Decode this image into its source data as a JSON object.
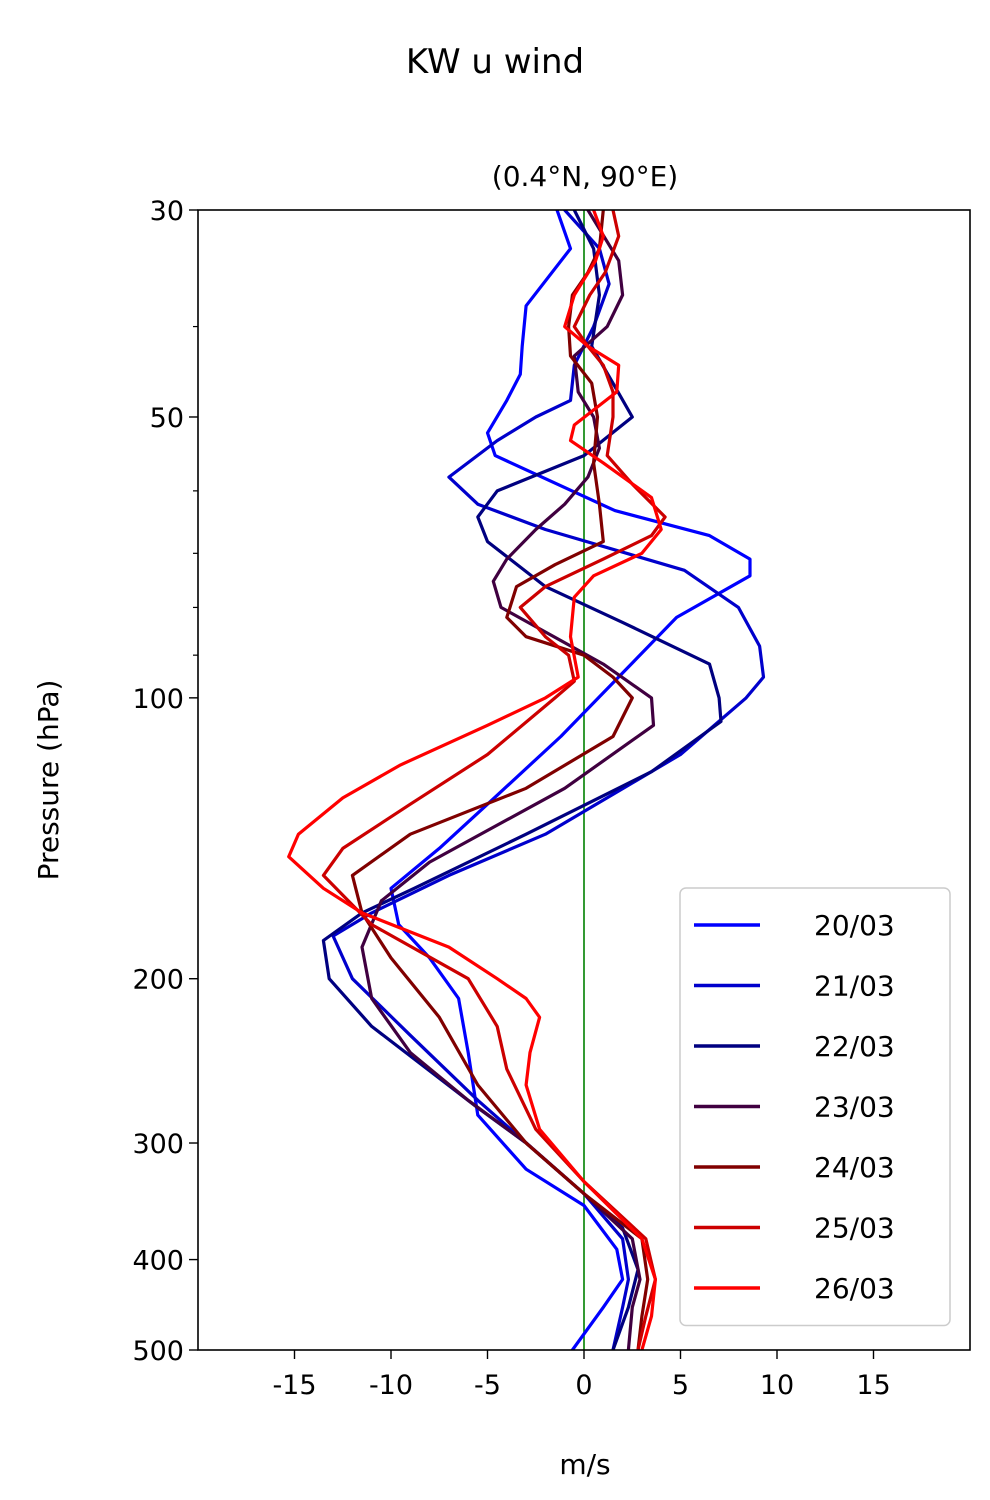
{
  "chart_data": {
    "type": "line",
    "title": "KW u wind",
    "subtitle": "(0.4°N, 90°E)",
    "xlabel": "m/s",
    "ylabel": "Pressure (hPa)",
    "xlim": [
      -20,
      20
    ],
    "ylim": [
      500,
      30
    ],
    "y_scale": "log",
    "grid": false,
    "legend_position": "lower-right",
    "x_ticks": [
      -15,
      -10,
      -5,
      0,
      5,
      10,
      15
    ],
    "x_tick_labels": [
      "-15",
      "-10",
      "-5",
      "0",
      "5",
      "10",
      "15"
    ],
    "y_ticks": [
      30,
      50,
      100,
      200,
      300,
      400,
      500
    ],
    "y_tick_labels": [
      "30",
      "50",
      "100",
      "200",
      "300",
      "400",
      "500"
    ],
    "y_minor_ticks": [
      40,
      60,
      70,
      80,
      90
    ],
    "reference_line": {
      "x": 0,
      "color": "#008000"
    },
    "series": [
      {
        "name": "20/03",
        "color": "#0000ff",
        "points": [
          [
            -1.4,
            30
          ],
          [
            -0.7,
            33
          ],
          [
            -3,
            38
          ],
          [
            -3.2,
            42
          ],
          [
            -3.3,
            45
          ],
          [
            -4,
            48
          ],
          [
            -5,
            52
          ],
          [
            -4.6,
            55
          ],
          [
            1.6,
            63
          ],
          [
            6.5,
            67
          ],
          [
            8.6,
            71
          ],
          [
            8.6,
            74
          ],
          [
            4.8,
            82
          ],
          [
            -1.2,
            110
          ],
          [
            -5,
            130
          ],
          [
            -7.5,
            145
          ],
          [
            -10,
            160
          ],
          [
            -9.6,
            175
          ],
          [
            -8,
            190
          ],
          [
            -6.5,
            210
          ],
          [
            -6,
            240
          ],
          [
            -5.5,
            280
          ],
          [
            -3,
            320
          ],
          [
            0,
            350
          ],
          [
            1.7,
            390
          ],
          [
            2,
            420
          ],
          [
            1,
            450
          ],
          [
            -0.6,
            500
          ]
        ]
      },
      {
        "name": "21/03",
        "color": "#0000cc",
        "points": [
          [
            -1,
            30
          ],
          [
            0.8,
            33
          ],
          [
            1.3,
            36
          ],
          [
            0.5,
            40
          ],
          [
            -0.5,
            44
          ],
          [
            -0.7,
            48
          ],
          [
            -2.5,
            50
          ],
          [
            -4.5,
            53
          ],
          [
            -7,
            58
          ],
          [
            -5.5,
            62
          ],
          [
            -2,
            66
          ],
          [
            5.2,
            73
          ],
          [
            8,
            80
          ],
          [
            9.1,
            88
          ],
          [
            9.3,
            95
          ],
          [
            8.4,
            100
          ],
          [
            5,
            115
          ],
          [
            -2,
            140
          ],
          [
            -7,
            155
          ],
          [
            -11,
            170
          ],
          [
            -13,
            180
          ],
          [
            -12,
            200
          ],
          [
            -9,
            230
          ],
          [
            -5.5,
            270
          ],
          [
            0,
            340
          ],
          [
            2,
            380
          ],
          [
            2.3,
            420
          ],
          [
            2,
            450
          ],
          [
            1.5,
            500
          ]
        ]
      },
      {
        "name": "22/03",
        "color": "#000080",
        "points": [
          [
            -0.5,
            30
          ],
          [
            0.5,
            33
          ],
          [
            0.8,
            37
          ],
          [
            0.4,
            42
          ],
          [
            1.5,
            46
          ],
          [
            2.5,
            50
          ],
          [
            0,
            55
          ],
          [
            -4.5,
            60
          ],
          [
            -5.5,
            64
          ],
          [
            -5,
            68
          ],
          [
            -2,
            76
          ],
          [
            2,
            83
          ],
          [
            6.5,
            92
          ],
          [
            7,
            100
          ],
          [
            7.1,
            106
          ],
          [
            3.5,
            120
          ],
          [
            -3,
            140
          ],
          [
            -8.8,
            160
          ],
          [
            -11.5,
            170
          ],
          [
            -13.5,
            182
          ],
          [
            -13.2,
            200
          ],
          [
            -11,
            225
          ],
          [
            -5.5,
            275
          ],
          [
            -3,
            300
          ],
          [
            0,
            340
          ],
          [
            2,
            370
          ],
          [
            2.8,
            410
          ],
          [
            2.3,
            450
          ],
          [
            1.5,
            500
          ]
        ]
      },
      {
        "name": "23/03",
        "color": "#400040",
        "points": [
          [
            0.2,
            30
          ],
          [
            1.8,
            34
          ],
          [
            2,
            37
          ],
          [
            1.2,
            40
          ],
          [
            -0.5,
            43
          ],
          [
            -0.3,
            47
          ],
          [
            0.5,
            50
          ],
          [
            0.8,
            54
          ],
          [
            0.2,
            58
          ],
          [
            -1,
            62
          ],
          [
            -2.5,
            66
          ],
          [
            -4,
            71
          ],
          [
            -4.7,
            75
          ],
          [
            -4.3,
            80
          ],
          [
            -2,
            85
          ],
          [
            1,
            92
          ],
          [
            3.5,
            100
          ],
          [
            3.6,
            107
          ],
          [
            -1,
            125
          ],
          [
            -8,
            150
          ],
          [
            -10.5,
            165
          ],
          [
            -11.5,
            185
          ],
          [
            -11,
            210
          ],
          [
            -9,
            240
          ],
          [
            -6,
            270
          ],
          [
            -3,
            300
          ],
          [
            0,
            340
          ],
          [
            2.5,
            380
          ],
          [
            2.9,
            420
          ],
          [
            2.5,
            450
          ],
          [
            2.3,
            500
          ]
        ]
      },
      {
        "name": "24/03",
        "color": "#800000",
        "points": [
          [
            1,
            30
          ],
          [
            0.8,
            33
          ],
          [
            0.2,
            35
          ],
          [
            -0.6,
            37
          ],
          [
            -0.8,
            40
          ],
          [
            -0.7,
            43
          ],
          [
            0.4,
            46
          ],
          [
            0.7,
            50
          ],
          [
            0.5,
            56
          ],
          [
            0.8,
            62
          ],
          [
            1,
            68
          ],
          [
            -1.5,
            72
          ],
          [
            -3.5,
            76
          ],
          [
            -4,
            82
          ],
          [
            -3,
            86
          ],
          [
            0,
            90
          ],
          [
            1.5,
            95
          ],
          [
            2.5,
            100
          ],
          [
            1.5,
            110
          ],
          [
            -3,
            125
          ],
          [
            -9,
            140
          ],
          [
            -12,
            155
          ],
          [
            -11.5,
            170
          ],
          [
            -10,
            190
          ],
          [
            -7.5,
            220
          ],
          [
            -5.5,
            260
          ],
          [
            -3,
            300
          ],
          [
            0,
            340
          ],
          [
            3,
            380
          ],
          [
            3.3,
            420
          ],
          [
            3,
            460
          ],
          [
            2.8,
            500
          ]
        ]
      },
      {
        "name": "25/03",
        "color": "#cc0000",
        "points": [
          [
            1.5,
            30
          ],
          [
            1.8,
            32
          ],
          [
            1.1,
            35
          ],
          [
            0.3,
            37
          ],
          [
            -0.5,
            40
          ],
          [
            0.2,
            42
          ],
          [
            1,
            44
          ],
          [
            1.5,
            47
          ],
          [
            1.5,
            50
          ],
          [
            1.2,
            55
          ],
          [
            2.5,
            59
          ],
          [
            4.2,
            64
          ],
          [
            3.5,
            67
          ],
          [
            1,
            71
          ],
          [
            -2,
            76
          ],
          [
            -3.3,
            80
          ],
          [
            -2,
            86
          ],
          [
            -0.8,
            90
          ],
          [
            -0.5,
            96
          ],
          [
            -1.5,
            100
          ],
          [
            -5,
            115
          ],
          [
            -9,
            130
          ],
          [
            -12.5,
            145
          ],
          [
            -13.5,
            155
          ],
          [
            -11,
            175
          ],
          [
            -6,
            200
          ],
          [
            -4.5,
            225
          ],
          [
            -4,
            250
          ],
          [
            -2.5,
            290
          ],
          [
            0,
            330
          ],
          [
            3.2,
            380
          ],
          [
            3.7,
            420
          ],
          [
            3.2,
            460
          ],
          [
            2.8,
            500
          ]
        ]
      },
      {
        "name": "26/03",
        "color": "#ff0000",
        "points": [
          [
            0.5,
            30
          ],
          [
            1,
            32
          ],
          [
            0.6,
            34
          ],
          [
            -0.5,
            37
          ],
          [
            -1,
            40
          ],
          [
            0.2,
            42
          ],
          [
            1.8,
            44
          ],
          [
            1.7,
            47
          ],
          [
            -0.5,
            51
          ],
          [
            -0.7,
            53
          ],
          [
            1,
            56
          ],
          [
            3.5,
            61
          ],
          [
            4,
            66
          ],
          [
            3,
            70
          ],
          [
            0.5,
            74
          ],
          [
            -0.5,
            78
          ],
          [
            -0.7,
            86
          ],
          [
            -0.3,
            95
          ],
          [
            -2,
            100
          ],
          [
            -5,
            107
          ],
          [
            -9.5,
            118
          ],
          [
            -12.5,
            128
          ],
          [
            -14.8,
            140
          ],
          [
            -15.3,
            148
          ],
          [
            -13.5,
            160
          ],
          [
            -11.5,
            170
          ],
          [
            -7,
            185
          ],
          [
            -4.5,
            200
          ],
          [
            -3,
            210
          ],
          [
            -2.3,
            220
          ],
          [
            -2.8,
            240
          ],
          [
            -3,
            260
          ],
          [
            -2.3,
            290
          ],
          [
            0,
            330
          ],
          [
            3,
            380
          ],
          [
            3.7,
            420
          ],
          [
            3.5,
            460
          ],
          [
            3,
            500
          ]
        ]
      }
    ]
  }
}
